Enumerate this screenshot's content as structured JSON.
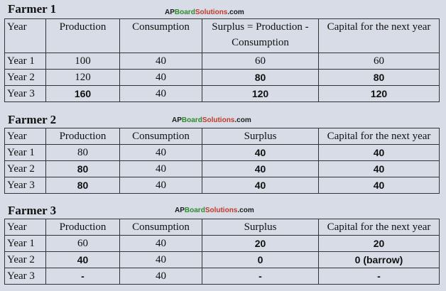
{
  "logo": {
    "ap": "AP",
    "board": "Board",
    "solutions": "Solutions",
    "dotcom": ".com"
  },
  "farmer1": {
    "title": "Farmer 1",
    "headers": [
      "Year",
      "Production",
      "Consumption",
      "Surplus = Production - Consumption",
      "Capital for the next year"
    ],
    "rows": [
      [
        "Year 1",
        "100",
        "40",
        "60",
        "60"
      ],
      [
        "Year 2",
        "120",
        "40",
        "80",
        "80"
      ],
      [
        "Year 3",
        "160",
        "40",
        "120",
        "120"
      ]
    ]
  },
  "farmer2": {
    "title": "Farmer 2",
    "headers": [
      "Year",
      "Production",
      "Consumption",
      "Surplus",
      "Capital for the next year"
    ],
    "rows": [
      [
        "Year 1",
        "80",
        "40",
        "40",
        "40"
      ],
      [
        "Year 2",
        "80",
        "40",
        "40",
        "40"
      ],
      [
        "Year 3",
        "80",
        "40",
        "40",
        "40"
      ]
    ]
  },
  "farmer3": {
    "title": "Farmer 3",
    "headers": [
      "Year",
      "Production",
      "Consumption",
      "Surplus",
      "Capital for the next year"
    ],
    "rows": [
      [
        "Year 1",
        "60",
        "40",
        "20",
        "20"
      ],
      [
        "Year 2",
        "40",
        "40",
        "0",
        "0 (barrow)"
      ],
      [
        "Year 3",
        "-",
        "40",
        "-",
        "-"
      ]
    ]
  }
}
